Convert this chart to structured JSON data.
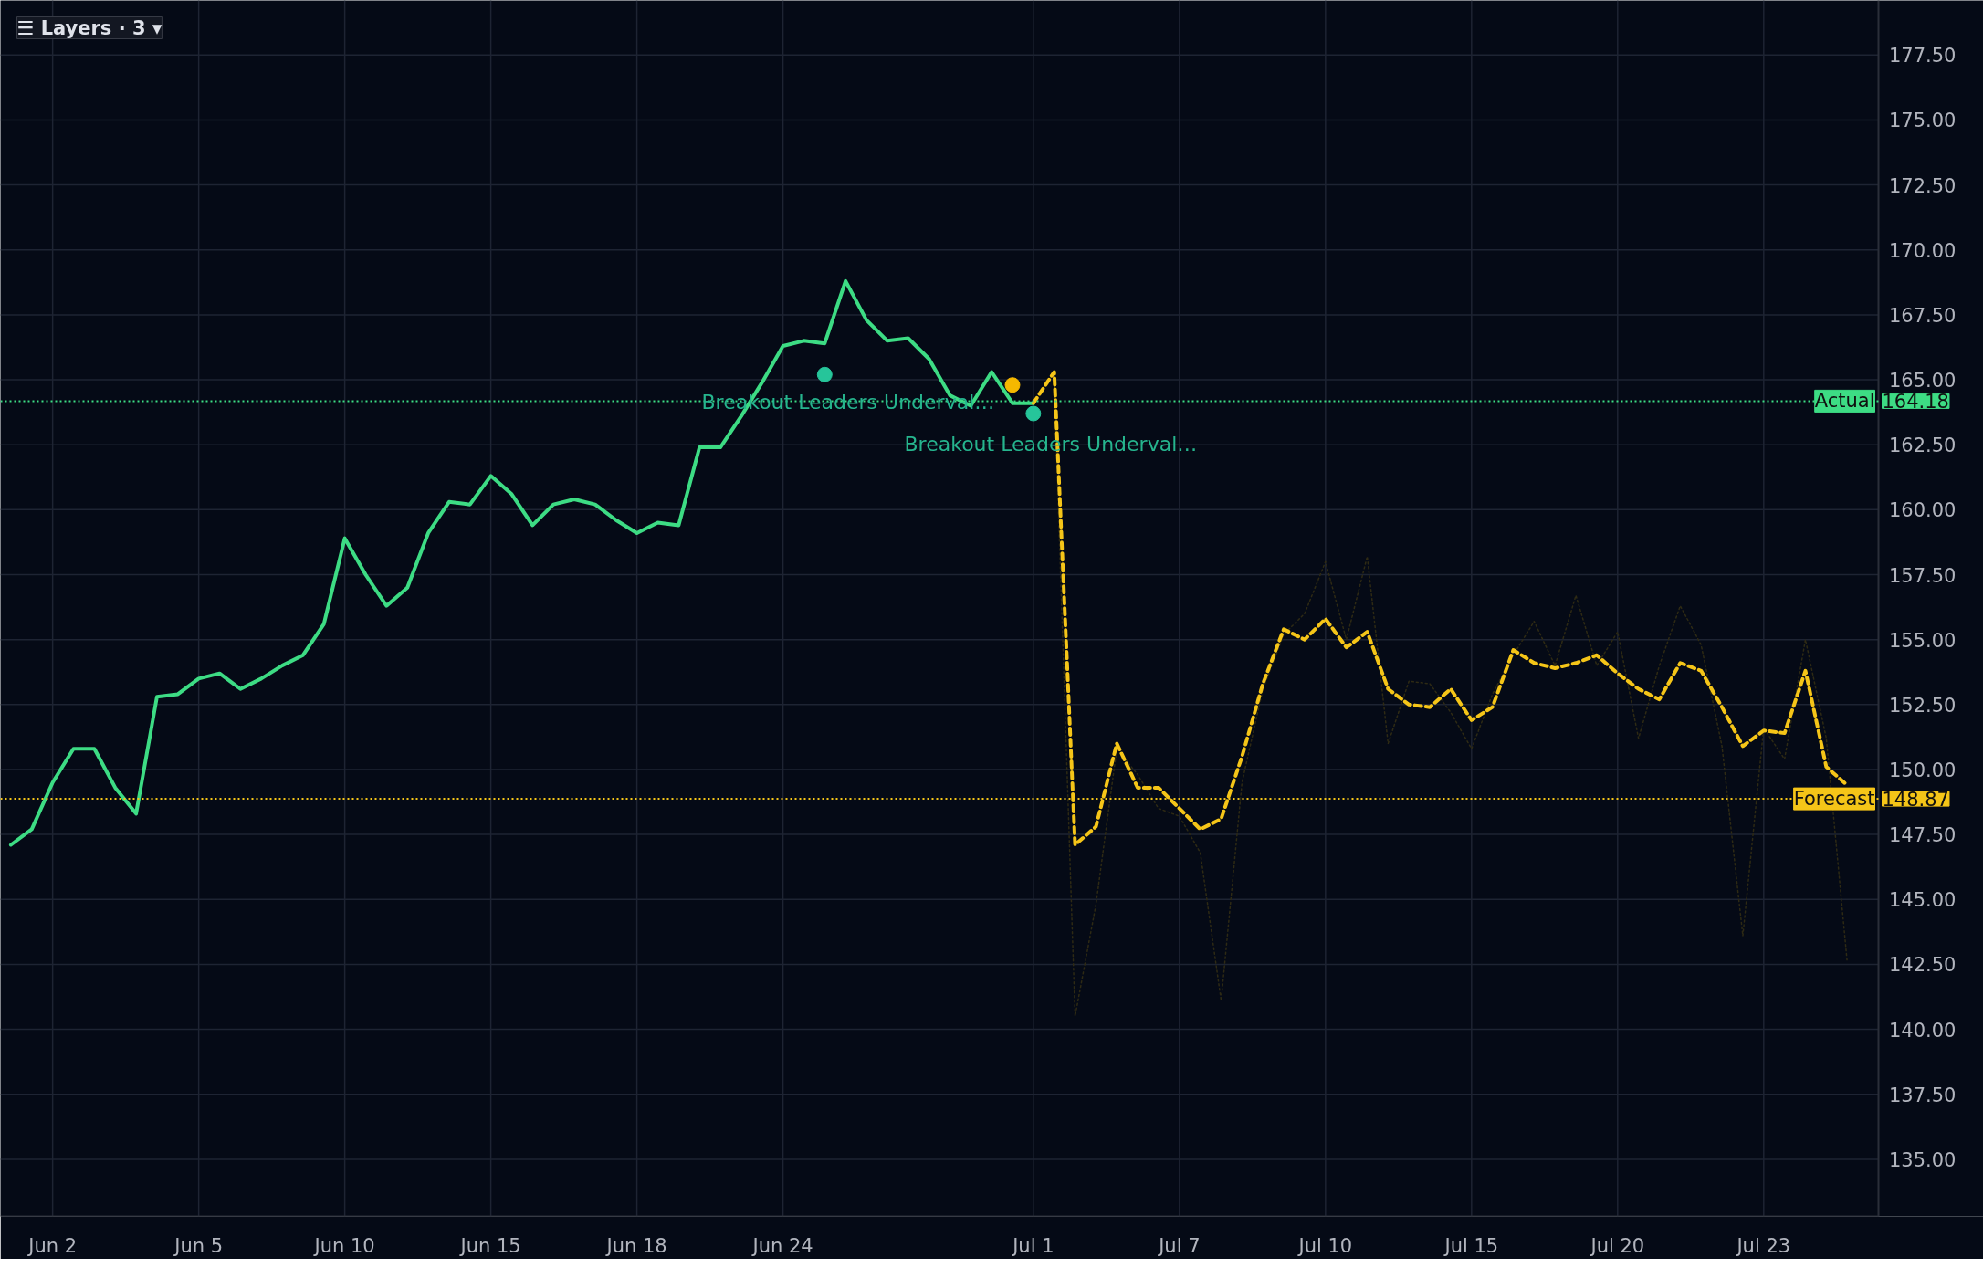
{
  "chart_data": {
    "type": "line",
    "categories": [
      null,
      null,
      "Jun 2",
      null,
      null,
      null,
      null,
      null,
      null,
      "Jun 5",
      null,
      null,
      null,
      null,
      null,
      null,
      "Jun 10",
      null,
      null,
      null,
      null,
      null,
      null,
      "Jun 15",
      null,
      null,
      null,
      null,
      null,
      null,
      "Jun 18",
      null,
      null,
      null,
      null,
      null,
      null,
      "Jun 24",
      null,
      null,
      null,
      null,
      null,
      null,
      null,
      null,
      null,
      null,
      null,
      "Jul 1",
      null,
      null,
      null,
      null,
      null,
      null,
      "Jul 7",
      null,
      null,
      null,
      null,
      null,
      null,
      "Jul 10",
      null,
      null,
      null,
      null,
      null,
      null,
      "Jul 15",
      null,
      null,
      null,
      null,
      null,
      null,
      "Jul 20",
      null,
      null,
      null,
      null,
      null,
      null,
      "Jul 23",
      null,
      null,
      null,
      null,
      null
    ],
    "ylim": [
      132.8,
      179.6
    ],
    "yticks": [
      {
        "value": 135,
        "label": "135.00"
      },
      {
        "value": 137.5,
        "label": "137.50"
      },
      {
        "value": 140,
        "label": "140.00"
      },
      {
        "value": 142.5,
        "label": "142.50"
      },
      {
        "value": 145,
        "label": "145.00"
      },
      {
        "value": 147.5,
        "label": "147.50"
      },
      {
        "value": 150,
        "label": "150.00"
      },
      {
        "value": 152.5,
        "label": "152.50"
      },
      {
        "value": 155,
        "label": "155.00"
      },
      {
        "value": 157.5,
        "label": "157.50"
      },
      {
        "value": 160,
        "label": "160.00"
      },
      {
        "value": 162.5,
        "label": "162.50"
      },
      {
        "value": 165,
        "label": "165.00"
      },
      {
        "value": 167.5,
        "label": "167.50"
      },
      {
        "value": 170,
        "label": "170.00"
      },
      {
        "value": 172.5,
        "label": "172.50"
      },
      {
        "value": 175,
        "label": "175.00"
      },
      {
        "value": 177.5,
        "label": "177.50"
      }
    ],
    "grid": true,
    "series": [
      {
        "line_style": "dotted",
        "color": "#2e2a14",
        "values": [
          null,
          null,
          null,
          null,
          null,
          null,
          null,
          null,
          null,
          null,
          null,
          null,
          null,
          null,
          null,
          null,
          null,
          null,
          null,
          null,
          null,
          null,
          null,
          null,
          null,
          null,
          null,
          null,
          null,
          null,
          null,
          null,
          null,
          null,
          null,
          null,
          null,
          null,
          null,
          null,
          null,
          null,
          null,
          null,
          null,
          null,
          null,
          null,
          null,
          null,
          165.0,
          140.5,
          144.8,
          150.8,
          149.8,
          148.5,
          148.2,
          146.8,
          141.1,
          149.5,
          153.1,
          155.2,
          156.0,
          158.0,
          155.0,
          158.2,
          151.0,
          153.4,
          153.3,
          152.2,
          150.8,
          152.9,
          154.4,
          155.7,
          154.0,
          156.7,
          154.0,
          155.3,
          151.2,
          154.0,
          156.3,
          154.8,
          150.9,
          143.6,
          151.6,
          150.4,
          155.0,
          151.2,
          142.6,
          null
        ]
      },
      {
        "line_style": "solid",
        "color": "#3ddc84",
        "values": [
          147.1,
          147.7,
          149.5,
          150.8,
          150.8,
          149.3,
          148.3,
          152.8,
          152.9,
          153.5,
          153.7,
          153.1,
          153.5,
          154.0,
          154.4,
          155.6,
          158.9,
          157.5,
          156.3,
          157.0,
          159.1,
          160.3,
          160.2,
          161.3,
          160.6,
          159.4,
          160.2,
          160.4,
          160.2,
          159.6,
          159.1,
          159.5,
          159.4,
          162.4,
          162.4,
          163.6,
          164.9,
          166.3,
          166.5,
          166.4,
          168.8,
          167.3,
          166.5,
          166.6,
          165.8,
          164.4,
          164.0,
          165.3,
          164.1,
          164.1,
          null,
          null,
          null,
          null,
          null,
          null,
          null,
          null,
          null,
          null,
          null,
          null,
          null,
          null,
          null,
          null,
          null,
          null,
          null,
          null,
          null,
          null,
          null,
          null,
          null,
          null,
          null,
          null,
          null,
          null,
          null,
          null,
          null,
          null,
          null,
          null,
          null,
          null,
          null,
          null
        ]
      },
      {
        "line_style": "dashed",
        "color": "#f5c518",
        "values": [
          null,
          null,
          null,
          null,
          null,
          null,
          null,
          null,
          null,
          null,
          null,
          null,
          null,
          null,
          null,
          null,
          null,
          null,
          null,
          null,
          null,
          null,
          null,
          null,
          null,
          null,
          null,
          null,
          null,
          null,
          null,
          null,
          null,
          null,
          null,
          null,
          null,
          null,
          null,
          null,
          null,
          null,
          null,
          null,
          null,
          null,
          null,
          null,
          null,
          164.1,
          165.3,
          147.1,
          147.8,
          151.0,
          149.3,
          149.3,
          148.5,
          147.7,
          148.1,
          150.5,
          153.3,
          155.4,
          155.0,
          155.8,
          154.7,
          155.3,
          153.1,
          152.5,
          152.4,
          153.1,
          151.9,
          152.4,
          154.6,
          154.1,
          153.9,
          154.1,
          154.4,
          153.7,
          153.1,
          152.7,
          154.1,
          153.8,
          152.4,
          150.9,
          151.5,
          151.4,
          153.8,
          150.1,
          149.4,
          null
        ]
      },
      {
        "type": "scatter",
        "marker": "circle",
        "color": "#26c59a",
        "values": [
          null,
          null,
          null,
          null,
          null,
          null,
          null,
          null,
          null,
          null,
          null,
          null,
          null,
          null,
          null,
          null,
          null,
          null,
          null,
          null,
          null,
          null,
          null,
          null,
          null,
          null,
          null,
          null,
          null,
          null,
          null,
          null,
          null,
          null,
          null,
          null,
          null,
          null,
          null,
          165.2,
          null,
          null,
          null,
          null,
          null,
          null,
          null,
          null,
          null,
          163.7,
          null,
          null,
          null,
          null,
          null,
          null,
          null,
          null,
          null,
          null,
          null,
          null,
          null,
          null,
          null,
          null,
          null,
          null,
          null,
          null,
          null,
          null,
          null,
          null,
          null,
          null,
          null,
          null,
          null,
          null,
          null,
          null,
          null,
          null,
          null,
          null,
          null,
          null,
          null,
          null
        ]
      },
      {
        "type": "scatter",
        "marker": "circle",
        "color": "#f5b800",
        "values": [
          null,
          null,
          null,
          null,
          null,
          null,
          null,
          null,
          null,
          null,
          null,
          null,
          null,
          null,
          null,
          null,
          null,
          null,
          null,
          null,
          null,
          null,
          null,
          null,
          null,
          null,
          null,
          null,
          null,
          null,
          null,
          null,
          null,
          null,
          null,
          null,
          null,
          null,
          null,
          null,
          null,
          null,
          null,
          null,
          null,
          null,
          null,
          null,
          164.8,
          null,
          null,
          null,
          null,
          null,
          null,
          null,
          null,
          null,
          null,
          null,
          null,
          null,
          null,
          null,
          null,
          null,
          null,
          null,
          null,
          null,
          null,
          null,
          null,
          null,
          null,
          null,
          null,
          null,
          null,
          null,
          null,
          null,
          null,
          null,
          null,
          null,
          null,
          null,
          null,
          null
        ]
      }
    ],
    "ref_lines": [
      {
        "axis": "y",
        "value": 164.18,
        "label": "Actual",
        "color": "#3ddc84",
        "line_style": "dotted"
      },
      {
        "axis": "y",
        "value": 148.87,
        "label": "Forecast",
        "color": "#f5c518",
        "line_style": "dotted"
      }
    ],
    "annotations": [
      "Breakout Leaders Underval…",
      "Breakout Leaders Underval…",
      "☰ Layers · 3 ▾",
      "164.18",
      "148.87"
    ]
  }
}
